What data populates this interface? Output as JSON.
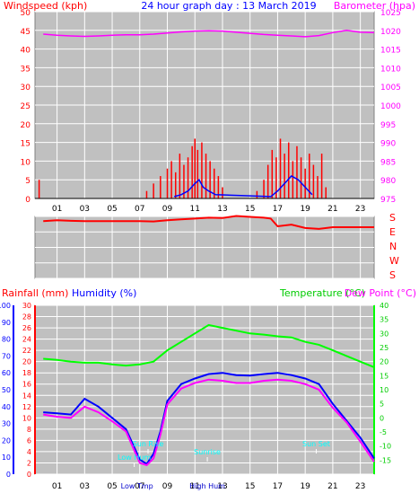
{
  "chart_data": [
    {
      "type": "line",
      "title": "24 hour graph day : 13 March 2019",
      "left_axis_label": "Windspeed (kph)",
      "right_axis_label": "Barometer (hpa)",
      "x_ticks": [
        "01",
        "03",
        "05",
        "07",
        "09",
        "11",
        "13",
        "15",
        "17",
        "19",
        "21",
        "23"
      ],
      "left_ylim": [
        0,
        50
      ],
      "left_ticks": [
        "0",
        "5",
        "10",
        "15",
        "20",
        "25",
        "30",
        "35",
        "40",
        "45",
        "50"
      ],
      "right_ylim": [
        975,
        1025
      ],
      "right_ticks": [
        "975",
        "980",
        "985",
        "990",
        "995",
        "1000",
        "1005",
        "1010",
        "1015",
        "1020",
        "1025"
      ],
      "grid": true,
      "series": [
        {
          "role": "barometer",
          "color": "#ff00ff",
          "x": [
            0,
            1,
            2,
            3,
            4,
            5,
            6,
            7,
            8,
            9,
            10,
            11,
            12,
            13,
            14,
            15,
            16,
            17,
            18,
            19,
            20,
            21,
            22,
            23,
            24
          ],
          "values": [
            1019.0,
            1018.7,
            1018.5,
            1018.4,
            1018.5,
            1018.7,
            1018.8,
            1018.8,
            1019.0,
            1019.3,
            1019.6,
            1019.8,
            1019.9,
            1019.8,
            1019.5,
            1019.2,
            1018.9,
            1018.7,
            1018.5,
            1018.3,
            1018.6,
            1019.4,
            1020.0,
            1019.5,
            1019.4
          ]
        },
        {
          "role": "gust",
          "color": "#ff0000",
          "x": [
            -0.3,
            7.5,
            8.0,
            8.5,
            9.0,
            9.3,
            9.6,
            9.9,
            10.2,
            10.5,
            10.8,
            11.0,
            11.2,
            11.5,
            11.8,
            12.1,
            12.4,
            12.7,
            13.0,
            15.5,
            16.0,
            16.3,
            16.6,
            16.9,
            17.2,
            17.5,
            17.8,
            18.1,
            18.4,
            18.7,
            19.0,
            19.3,
            19.6,
            19.9,
            20.2,
            20.5
          ],
          "values": [
            5,
            2,
            4,
            6,
            8,
            10,
            7,
            12,
            9,
            11,
            14,
            16,
            13,
            15,
            12,
            10,
            8,
            6,
            3,
            2,
            5,
            9,
            13,
            11,
            16,
            12,
            15,
            10,
            14,
            11,
            8,
            12,
            9,
            6,
            12,
            3
          ]
        },
        {
          "role": "wind-speed",
          "color": "#0000ff",
          "x": [
            9.5,
            10.0,
            10.5,
            11.0,
            11.3,
            11.6,
            12.0,
            12.5,
            16.5,
            17.0,
            17.5,
            18.0,
            18.5,
            19.0,
            19.5
          ],
          "values": [
            0.5,
            1,
            2,
            4,
            5,
            3,
            2,
            1,
            0.5,
            2,
            4,
            6,
            5,
            3,
            1
          ]
        }
      ]
    },
    {
      "type": "line",
      "title": "",
      "right_axis_labels": [
        "S",
        "E",
        "N",
        "W",
        "S"
      ],
      "grid": true,
      "series": [
        {
          "role": "wind-direction",
          "color": "#ff0000",
          "x": [
            0,
            1,
            2,
            3,
            4,
            5,
            6,
            7,
            8,
            9,
            10,
            11,
            12,
            13,
            14,
            15,
            16,
            16.5,
            17,
            18,
            19,
            20,
            21,
            22,
            23,
            24
          ],
          "values": [
            270,
            275,
            272,
            270,
            270,
            270,
            270,
            270,
            268,
            275,
            280,
            285,
            290,
            288,
            300,
            295,
            290,
            285,
            240,
            250,
            230,
            225,
            235,
            235,
            235,
            235
          ]
        }
      ]
    },
    {
      "type": "line",
      "title": "",
      "rainfall_label": "Rainfall (mm)",
      "humidity_label": "Humidity (%)",
      "temperature_label": "Temperature (°C)",
      "dewpoint_label": "Dew Point (°C)",
      "x_ticks": [
        "01",
        "03",
        "05",
        "07",
        "09",
        "11",
        "13",
        "15",
        "17",
        "19",
        "21",
        "23"
      ],
      "humidity_ylim": [
        0,
        100
      ],
      "humidity_ticks": [
        "0",
        "10",
        "20",
        "30",
        "40",
        "50",
        "60",
        "70",
        "80",
        "90",
        "100"
      ],
      "rain_ylim": [
        0,
        30
      ],
      "rain_ticks": [
        "0",
        "2",
        "4",
        "6",
        "8",
        "10",
        "12",
        "14",
        "16",
        "18",
        "20",
        "22",
        "24",
        "26",
        "28",
        "30"
      ],
      "temp_ylim": [
        -20,
        40
      ],
      "temp_ticks": [
        "-15",
        "-10",
        "-5",
        "0",
        "5",
        "10",
        "15",
        "20",
        "25",
        "30",
        "35",
        "40"
      ],
      "grid": true,
      "series": [
        {
          "role": "rainfall",
          "color": "#00ff00",
          "x": [
            0,
            1,
            2,
            3,
            4,
            5,
            6,
            7,
            8,
            9,
            10,
            11,
            12,
            13,
            14,
            15,
            16,
            17,
            18,
            19,
            20,
            21,
            22,
            23,
            24
          ],
          "values": [
            20.5,
            20.3,
            20.0,
            19.8,
            19.8,
            19.5,
            19.3,
            19.5,
            20.0,
            22.0,
            23.5,
            25.0,
            26.5,
            26.0,
            25.5,
            25.0,
            24.8,
            24.5,
            24.3,
            23.5,
            23.0,
            22.0,
            21.0,
            20.0,
            19.0
          ]
        },
        {
          "role": "humidity",
          "color": "#0000ff",
          "x": [
            0,
            1,
            2,
            3,
            4,
            5,
            6,
            7,
            7.5,
            8,
            8.5,
            9,
            10,
            11,
            12,
            13,
            14,
            15,
            16,
            17,
            18,
            19,
            20,
            21,
            22,
            23,
            24
          ],
          "values": [
            11.0,
            10.8,
            10.6,
            13.4,
            12.0,
            10.0,
            8.0,
            2.6,
            1.8,
            3.6,
            7.6,
            13.0,
            16.0,
            17.0,
            17.8,
            18.0,
            17.6,
            17.5,
            17.8,
            18.0,
            17.6,
            17.0,
            16.0,
            12.5,
            9.5,
            6.5,
            2.8
          ]
        },
        {
          "role": "humidity-dew",
          "color": "#ff00ff",
          "x": [
            0,
            1,
            2,
            3,
            4,
            5,
            6,
            7,
            7.5,
            8,
            8.5,
            9,
            10,
            11,
            12,
            13,
            14,
            15,
            16,
            17,
            18,
            19,
            20,
            21,
            22,
            23,
            24
          ],
          "values": [
            10.6,
            10.2,
            10.0,
            12.0,
            11.0,
            9.4,
            7.6,
            2.0,
            1.6,
            2.8,
            7.0,
            12.4,
            15.2,
            16.2,
            16.8,
            16.6,
            16.2,
            16.2,
            16.6,
            16.8,
            16.6,
            16.0,
            15.0,
            11.8,
            9.2,
            5.8,
            2.2
          ]
        }
      ],
      "annotations": [
        "Low Tmp",
        "Low Hum",
        "Sun Rise",
        "High Hum",
        "Sunrise",
        "Sun Set"
      ]
    }
  ],
  "colors": {
    "background": "#c0c0c0",
    "grid": "#ffffff",
    "red": "#ff0000",
    "blue": "#0000ff",
    "magenta": "#ff00ff",
    "green": "#00ff00",
    "cyan": "#00ffff"
  }
}
